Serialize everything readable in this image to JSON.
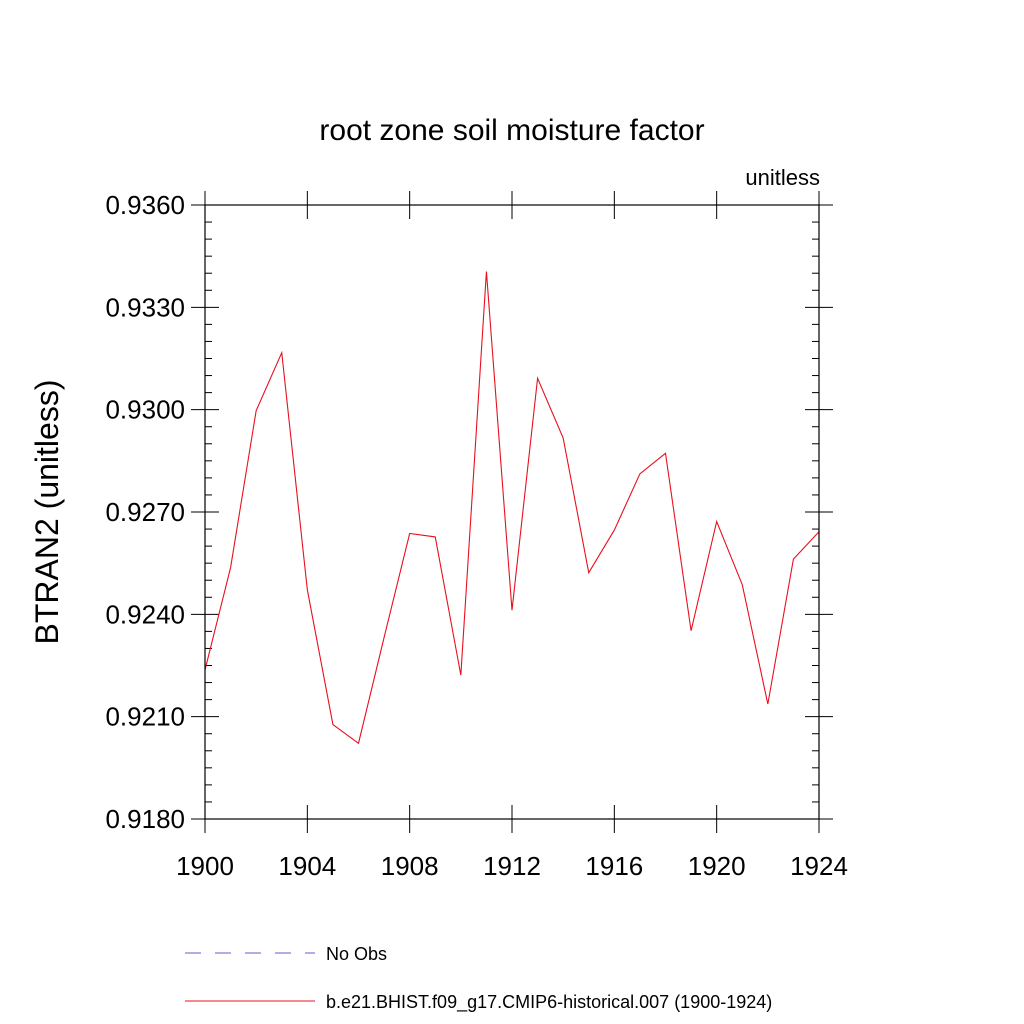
{
  "chart_data": {
    "type": "line",
    "title": "root zone soil moisture factor",
    "units_label": "unitless",
    "xlabel": "",
    "ylabel": "BTRAN2  (unitless)",
    "xlim": [
      1900,
      1924
    ],
    "ylim": [
      0.918,
      0.936
    ],
    "x_ticks": [
      1900,
      1904,
      1908,
      1912,
      1916,
      1920,
      1924
    ],
    "x_tick_labels": [
      "1900",
      "1904",
      "1908",
      "1912",
      "1916",
      "1920",
      "1924"
    ],
    "y_ticks": [
      0.918,
      0.921,
      0.924,
      0.927,
      0.93,
      0.933,
      0.936
    ],
    "y_tick_labels": [
      "0.9180",
      "0.9210",
      "0.9240",
      "0.9270",
      "0.9300",
      "0.9330",
      "0.9360"
    ],
    "y_minor_step": 0.0005,
    "x_minor_step": 1,
    "grid": false,
    "series": [
      {
        "name": "No Obs",
        "color": "#6a5acd",
        "dashed": true,
        "x": [],
        "values": []
      },
      {
        "name": "b.e21.BHIST.f09_g17.CMIP6-historical.007 (1900-1924)",
        "color": "#e8101e",
        "dashed": false,
        "x": [
          1900,
          1901,
          1902,
          1903,
          1904,
          1905,
          1906,
          1907,
          1908,
          1909,
          1910,
          1911,
          1912,
          1913,
          1914,
          1915,
          1916,
          1917,
          1918,
          1919,
          1920,
          1921,
          1922,
          1923,
          1924
        ],
        "values": [
          0.92237,
          0.92537,
          0.92997,
          0.93167,
          0.92472,
          0.92077,
          0.92022,
          0.92332,
          0.92637,
          0.92627,
          0.92222,
          0.93405,
          0.92412,
          0.93092,
          0.92917,
          0.92522,
          0.92647,
          0.92812,
          0.92872,
          0.92352,
          0.92672,
          0.92487,
          0.92137,
          0.92562,
          0.92642
        ]
      }
    ],
    "legend": "bottom"
  }
}
